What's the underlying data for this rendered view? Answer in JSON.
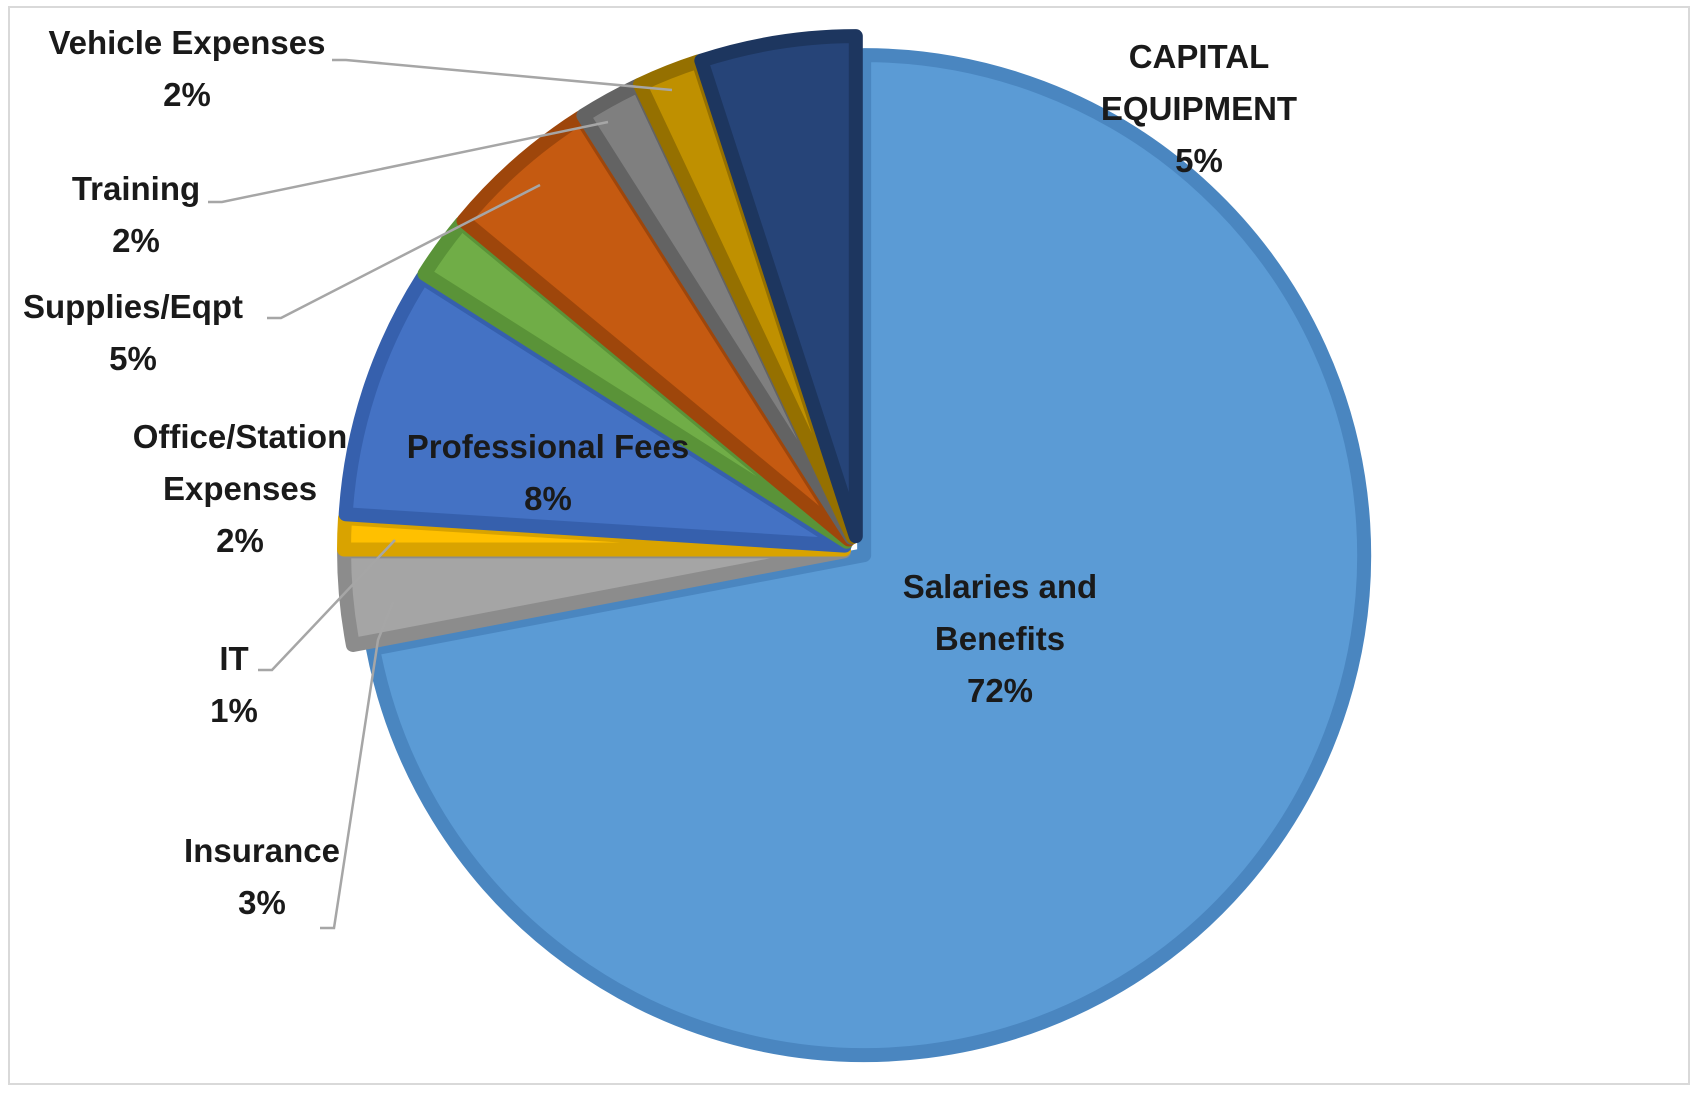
{
  "chart_data": {
    "type": "pie",
    "title": "",
    "start_angle_deg": 0,
    "direction": "clockwise",
    "slices": [
      {
        "label": "Salaries and Benefits",
        "percent_label": "72%",
        "value": 72,
        "color": "#5b9bd5",
        "edge": "#4a86c0",
        "label_lines": [
          "Salaries and",
          "Benefits",
          "72%"
        ]
      },
      {
        "label": "Insurance",
        "percent_label": "3%",
        "value": 3,
        "color": "#a5a5a5",
        "edge": "#8c8c8c",
        "label_lines": [
          "Insurance",
          "3%"
        ]
      },
      {
        "label": "IT",
        "percent_label": "1%",
        "value": 1,
        "color": "#ffc000",
        "edge": "#d9a300",
        "label_lines": [
          "IT",
          "1%"
        ]
      },
      {
        "label": "Professional Fees",
        "percent_label": "8%",
        "value": 8,
        "color": "#4472c4",
        "edge": "#3660ad",
        "label_lines": [
          "Professional Fees",
          "8%"
        ]
      },
      {
        "label": "Office/Station Expenses",
        "percent_label": "2%",
        "value": 2,
        "color": "#70ad47",
        "edge": "#5a9338",
        "label_lines": [
          "Office/Station",
          "Expenses",
          "2%"
        ]
      },
      {
        "label": "Supplies/Eqpt",
        "percent_label": "5%",
        "value": 5,
        "color": "#c55a11",
        "edge": "#9e460b",
        "label_lines": [
          "Supplies/Eqpt",
          "5%"
        ]
      },
      {
        "label": "Training",
        "percent_label": "2%",
        "value": 2,
        "color": "#7f7f7f",
        "edge": "#636363",
        "label_lines": [
          "Training",
          "2%"
        ]
      },
      {
        "label": "Vehicle Expenses",
        "percent_label": "2%",
        "value": 2,
        "color": "#bf9000",
        "edge": "#957000",
        "label_lines": [
          "Vehicle Expenses",
          "2%"
        ]
      },
      {
        "label": "CAPITAL EQUIPMENT",
        "percent_label": "5%",
        "value": 5,
        "color": "#264478",
        "edge": "#1d365f",
        "label_lines": [
          "CAPITAL",
          "EQUIPMENT",
          "5%"
        ]
      }
    ]
  }
}
